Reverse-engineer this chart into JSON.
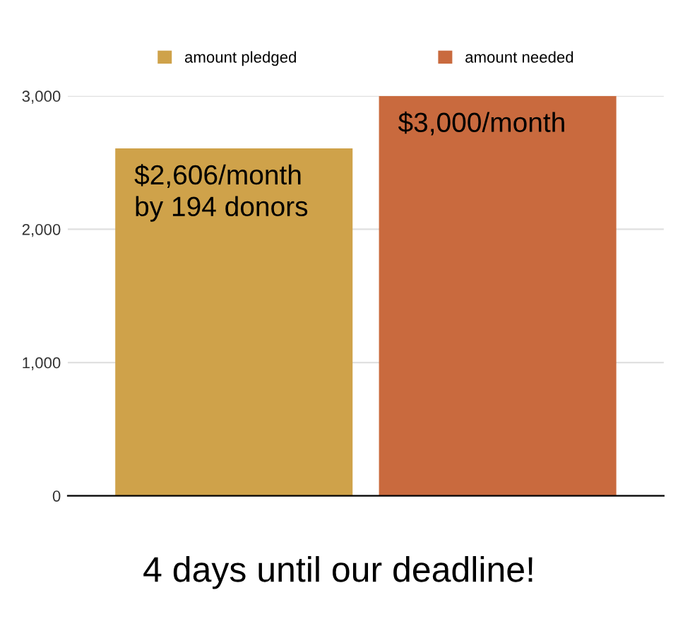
{
  "chart_data": {
    "type": "bar",
    "categories": [
      null,
      null
    ],
    "series": [
      {
        "name": "amount pledged",
        "color": "#cfa24a",
        "values": [
          2606,
          null
        ],
        "value_labels": [
          "$2,606/month\nby 194 donors",
          null
        ]
      },
      {
        "name": "amount needed",
        "color": "#c96a3e",
        "values": [
          null,
          3000
        ],
        "value_labels": [
          null,
          "$3,000/month"
        ]
      }
    ],
    "ylim": [
      0,
      3000
    ],
    "yticks": [
      0,
      {
        "value": 1000,
        "label": "1,000"
      },
      {
        "value": 2000,
        "label": "2,000"
      },
      {
        "value": 3000,
        "label": "3,000"
      }
    ],
    "grid": "y",
    "legend": "top",
    "annotations": [
      "4 days until our deadline!"
    ]
  }
}
